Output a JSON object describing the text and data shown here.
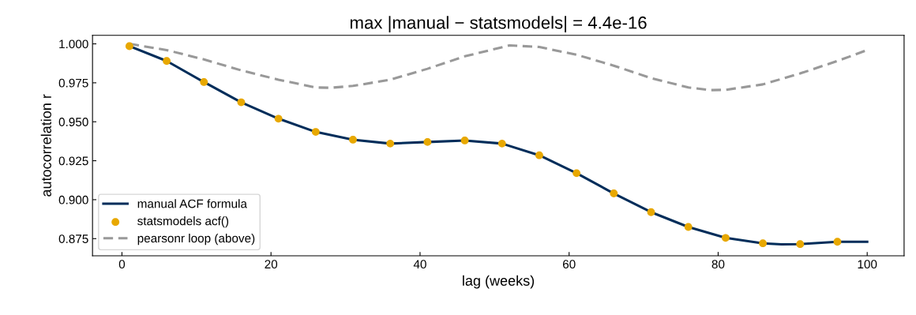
{
  "chart_data": {
    "type": "line",
    "title": "max |manual − statsmodels| = 4.4e-16",
    "xlabel": "lag (weeks)",
    "ylabel": "autocorrelation r",
    "xlim": [
      -3.95,
      104.95
    ],
    "xticks": [
      0,
      20,
      40,
      60,
      80,
      100
    ],
    "ylim": [
      0.864,
      1.0055
    ],
    "yticks": [
      {
        "value": 0.875,
        "label": "0.875"
      },
      {
        "value": 0.9,
        "label": "0.900"
      },
      {
        "value": 0.925,
        "label": "0.925"
      },
      {
        "value": 0.95,
        "label": "0.950"
      },
      {
        "value": 0.975,
        "label": "0.975"
      },
      {
        "value": 1.0,
        "label": "1.000"
      }
    ],
    "grid": false,
    "legend": "bottom left",
    "series": [
      {
        "name": "manual ACF formula",
        "color": "#002d5a",
        "marker": "none",
        "line_style": "solid",
        "x": [
          1,
          6,
          11,
          16,
          21,
          26,
          31,
          36,
          41,
          46,
          51,
          56,
          61,
          66,
          71,
          76,
          81,
          86,
          88.5,
          91,
          96,
          100
        ],
        "values": [
          0.9985,
          0.989,
          0.9755,
          0.9625,
          0.952,
          0.9435,
          0.9385,
          0.936,
          0.937,
          0.938,
          0.936,
          0.9285,
          0.917,
          0.904,
          0.892,
          0.8825,
          0.8755,
          0.872,
          0.8713,
          0.8715,
          0.873,
          0.873
        ]
      },
      {
        "name": "statsmodels acf()",
        "type": "scatter",
        "color": "#e8a800",
        "marker": "circle",
        "x": [
          1,
          6,
          11,
          16,
          21,
          26,
          31,
          36,
          41,
          46,
          51,
          56,
          61,
          66,
          71,
          76,
          81,
          86,
          91,
          96
        ],
        "values": [
          0.9985,
          0.989,
          0.9755,
          0.9625,
          0.952,
          0.9435,
          0.9385,
          0.936,
          0.937,
          0.938,
          0.936,
          0.9285,
          0.917,
          0.904,
          0.892,
          0.8825,
          0.8755,
          0.872,
          0.8715,
          0.873
        ]
      },
      {
        "name": "pearsonr loop (above)",
        "color": "#999999",
        "marker": "none",
        "line_style": "dashed",
        "x": [
          1,
          6,
          11,
          16,
          21,
          26,
          28,
          31,
          36,
          41,
          46,
          52,
          56,
          61,
          66,
          71,
          76,
          79,
          81,
          86,
          91,
          96,
          100
        ],
        "values": [
          1.0,
          0.996,
          0.99,
          0.983,
          0.977,
          0.972,
          0.9718,
          0.973,
          0.977,
          0.984,
          0.992,
          0.999,
          0.998,
          0.993,
          0.986,
          0.978,
          0.972,
          0.9703,
          0.9705,
          0.974,
          0.981,
          0.989,
          0.996
        ]
      }
    ]
  }
}
